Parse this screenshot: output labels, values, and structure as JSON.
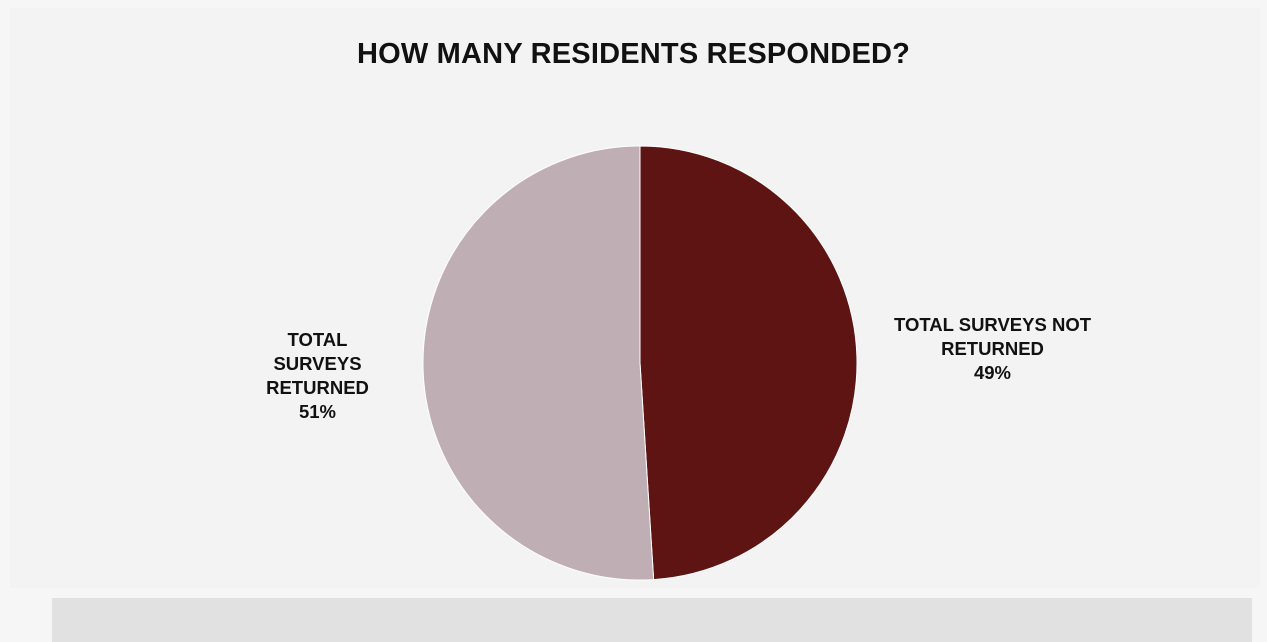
{
  "chart_data": {
    "type": "pie",
    "title": "HOW MANY RESIDENTS RESPONDED?",
    "slices": [
      {
        "label": "TOTAL SURVEYS NOT RETURNED",
        "value": 49,
        "percent_label": "49%",
        "color": "#5f1414"
      },
      {
        "label": "TOTAL SURVEYS RETURNED",
        "value": 51,
        "percent_label": "51%",
        "color": "#bfaeb3"
      }
    ],
    "legend": "none",
    "data_labels": "outside"
  }
}
